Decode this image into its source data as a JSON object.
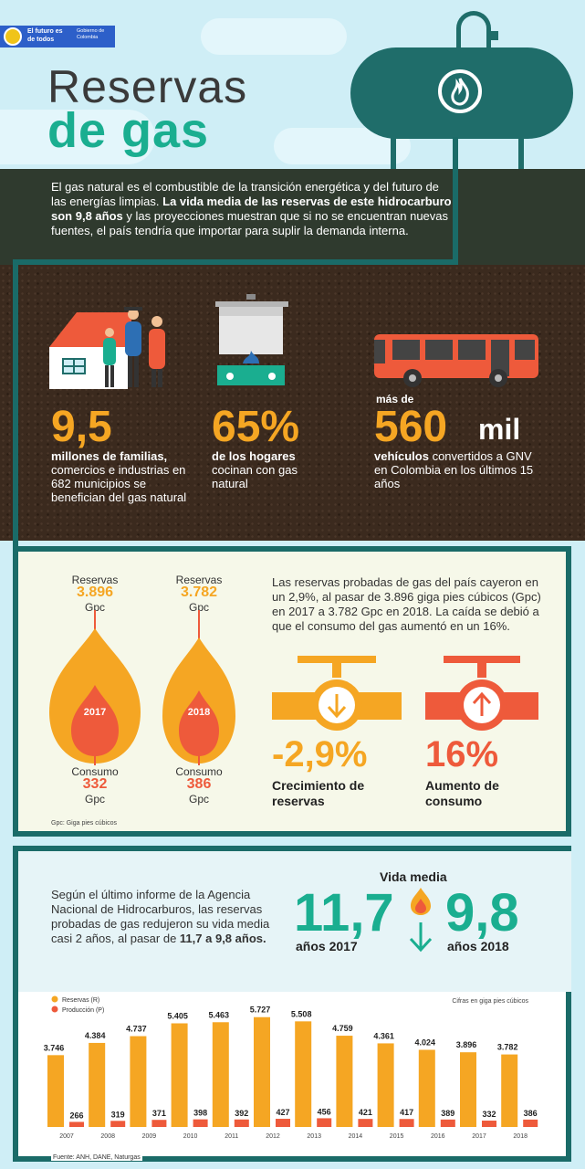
{
  "header": {
    "logo_line1": "El futuro es de todos",
    "logo_line2": "Gobierno de Colombia",
    "title_line1": "Reservas",
    "title_line2": "de gas"
  },
  "intro": {
    "text_a": "El gas natural es el combustible de la transición energética y del futuro de las energías limpias. ",
    "text_bold": "La vida media de las reservas de este hidrocarburo son 9,8 años",
    "text_b": " y las proyecciones muestran que si no se encuentran nuevas fuentes, el país tendría que importar para suplir la demanda interna."
  },
  "stats": [
    {
      "number": "9,5",
      "bold": "millones de familias,",
      "text": " comercios e industrias en 682 municipios se benefician del gas natural"
    },
    {
      "number": "65%",
      "bold": "de los hogares",
      "text": " cocinan con gas natural"
    },
    {
      "prefix": "más de",
      "number": "560",
      "unit": "mil",
      "bold": "vehículos",
      "text": " convertidos a GNV en Colombia en los últimos 15 años"
    }
  ],
  "reserves": {
    "label_reserves": "Reservas",
    "label_consumption": "Consumo",
    "unit": "Gpc",
    "y2017": {
      "year": "2017",
      "reserves": "3.896",
      "consumption": "332"
    },
    "y2018": {
      "year": "2018",
      "reserves": "3.782",
      "consumption": "386"
    },
    "description": "Las reservas probadas de gas del país cayeron en un 2,9%, al pasar de 3.896 giga pies cúbicos (Gpc) en 2017 a 3.782 Gpc en 2018. La caída se debió a que el consumo del gas aumentó en un 16%.",
    "growth_pct": "-2,9%",
    "growth_caption": "Crecimiento de reservas",
    "consumption_pct": "16%",
    "consumption_caption": "Aumento de consumo",
    "note": "Gpc: Giga pies cúbicos",
    "colors": {
      "orange": "#f5a623",
      "red": "#ee5a3b"
    }
  },
  "vida_media": {
    "text_a": "Según el último informe de la Agencia Nacional de Hidrocarburos, las reservas probadas de gas redujeron su vida media casi 2 años, al pasar de ",
    "text_bold": "11,7 a 9,8 años.",
    "title": "Vida media",
    "value_2017": "11,7",
    "caption_2017": "años 2017",
    "value_2018": "9,8",
    "caption_2018": "años 2018"
  },
  "chart_data": {
    "type": "bar",
    "categories": [
      "2007",
      "2008",
      "2009",
      "2010",
      "2011",
      "2012",
      "2013",
      "2014",
      "2015",
      "2016",
      "2017",
      "2018"
    ],
    "series": [
      {
        "name": "Reservas (R)",
        "values": [
          3746,
          4384,
          4737,
          5405,
          5463,
          5727,
          5508,
          4759,
          4361,
          4024,
          3896,
          3782
        ],
        "labels": [
          "3.746",
          "4.384",
          "4.737",
          "5.405",
          "5.463",
          "5.727",
          "5.508",
          "4.759",
          "4.361",
          "4.024",
          "3.896",
          "3.782"
        ],
        "color": "#f5a623"
      },
      {
        "name": "Producción (P)",
        "values": [
          266,
          319,
          371,
          398,
          392,
          427,
          456,
          421,
          417,
          389,
          332,
          386
        ],
        "labels": [
          "266",
          "319",
          "371",
          "398",
          "392",
          "427",
          "456",
          "421",
          "417",
          "389",
          "332",
          "386"
        ],
        "color": "#ee5a3b"
      }
    ],
    "note": "Cifras en giga pies cúbicos",
    "legend": "top-left",
    "ylim": [
      0,
      6000
    ]
  },
  "footer": {
    "source": "Fuente: ANH, DANE, Naturgas"
  }
}
